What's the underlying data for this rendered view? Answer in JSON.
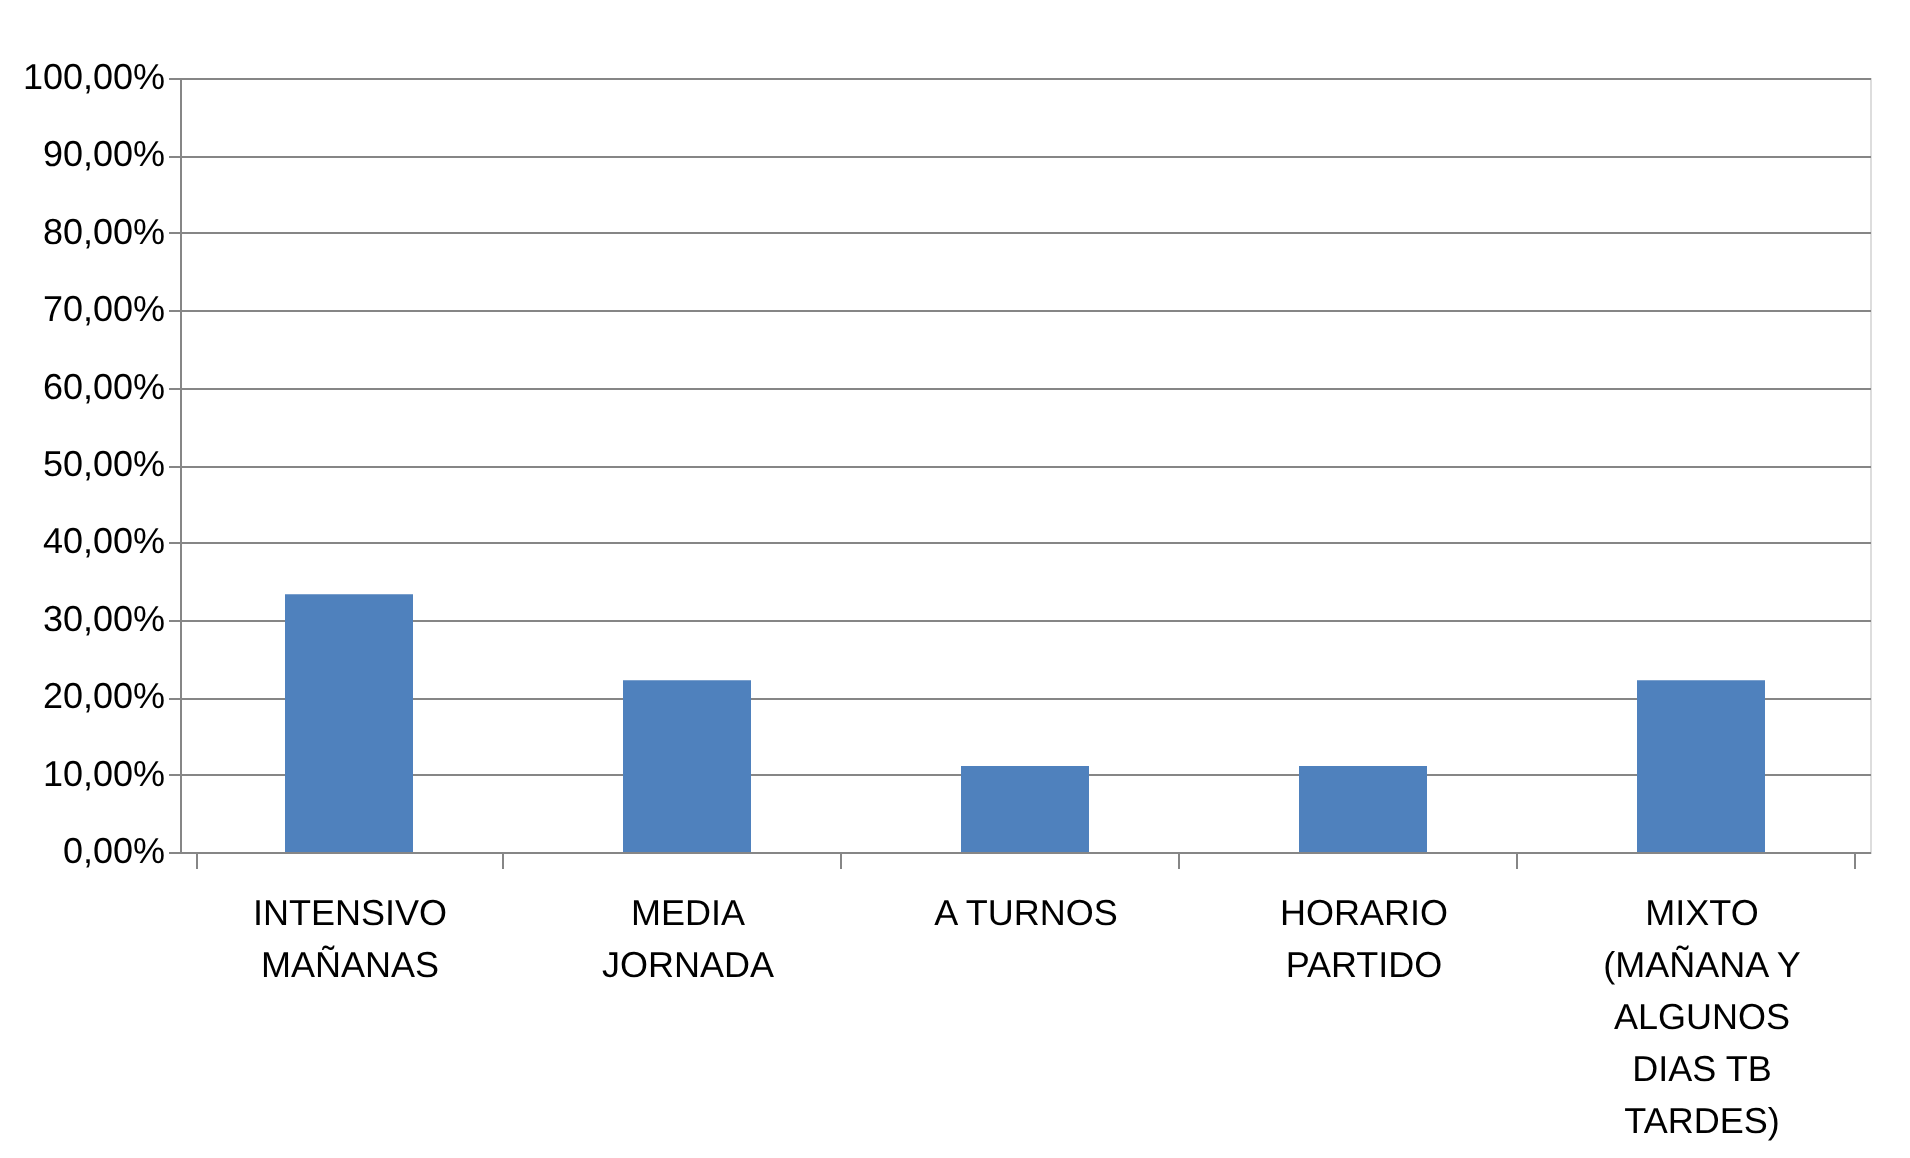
{
  "chart_data": {
    "type": "bar",
    "categories": [
      "INTENSIVO MAÑANAS",
      "MEDIA JORNADA",
      "A TURNOS",
      "HORARIO PARTIDO",
      "MIXTO (MAÑANA Y ALGUNOS DIAS TB TARDES)"
    ],
    "values": [
      33.3,
      22.2,
      11.1,
      11.1,
      22.2
    ],
    "color": "#4f81bd",
    "ylim": [
      0,
      100
    ],
    "yticks": [
      {
        "value": 0,
        "label": "0,00%"
      },
      {
        "value": 10,
        "label": "10,00%"
      },
      {
        "value": 20,
        "label": "20,00%"
      },
      {
        "value": 30,
        "label": "30,00%"
      },
      {
        "value": 40,
        "label": "40,00%"
      },
      {
        "value": 50,
        "label": "50,00%"
      },
      {
        "value": 60,
        "label": "60,00%"
      },
      {
        "value": 70,
        "label": "70,00%"
      },
      {
        "value": 80,
        "label": "80,00%"
      },
      {
        "value": 90,
        "label": "90,00%"
      },
      {
        "value": 100,
        "label": "100,00%"
      }
    ],
    "grid": "y"
  }
}
